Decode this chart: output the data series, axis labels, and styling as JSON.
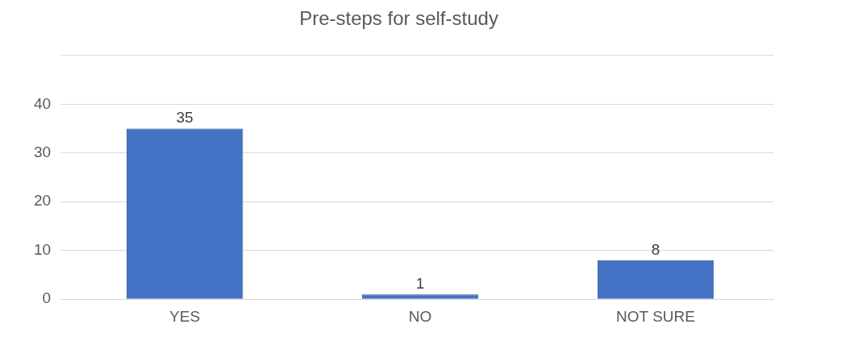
{
  "chart_data": {
    "type": "bar",
    "title": "Pre-steps for self-study",
    "categories": [
      "YES",
      "NO",
      "NOT SURE"
    ],
    "values": [
      35,
      1,
      8
    ],
    "color": "#4472c4",
    "ylim": [
      0,
      50
    ],
    "yticks": [
      0,
      10,
      20,
      30,
      40,
      {
        "value": 50,
        "label": null
      }
    ],
    "grid": "y",
    "legend": false,
    "data_labels": true
  }
}
